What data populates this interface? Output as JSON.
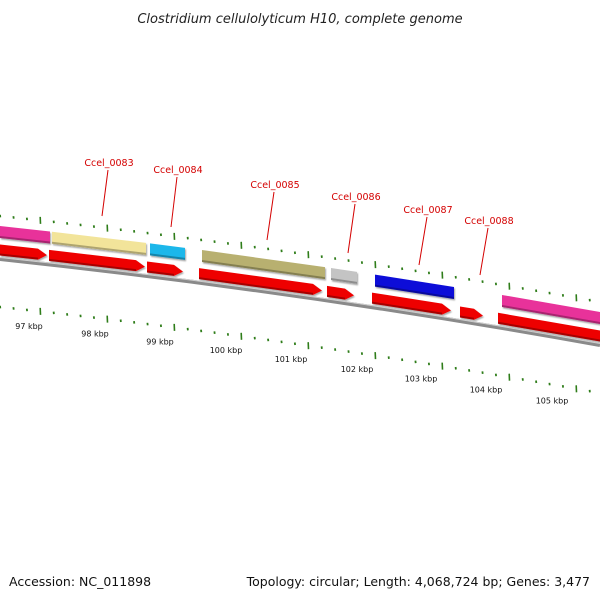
{
  "title": "Clostridium cellulolyticum H10, complete genome",
  "footer": {
    "accession": "Accession: NC_011898",
    "summary": "Topology: circular; Length: 4,068,724 bp; Genes: 3,477"
  },
  "colors": {
    "backbone": "#8a8a8a",
    "cds": "#ee0000",
    "tick": "#2f7d1a",
    "label": "#d40000"
  },
  "position_labels": [
    "97 kbp",
    "98 kbp",
    "99 kbp",
    "100 kbp",
    "101 kbp",
    "102 kbp",
    "103 kbp",
    "104 kbp",
    "105 kbp"
  ],
  "gene_labels": [
    "Ccel_0083",
    "Ccel_0084",
    "Ccel_0085",
    "Ccel_0086",
    "Ccel_0087",
    "Ccel_0088"
  ],
  "feature_colors": [
    "#e8319a",
    "#f2e49a",
    "#1fb7ea",
    "#b8b070",
    "#c4c4c4",
    "#0a10d8",
    "#e8319a"
  ]
}
